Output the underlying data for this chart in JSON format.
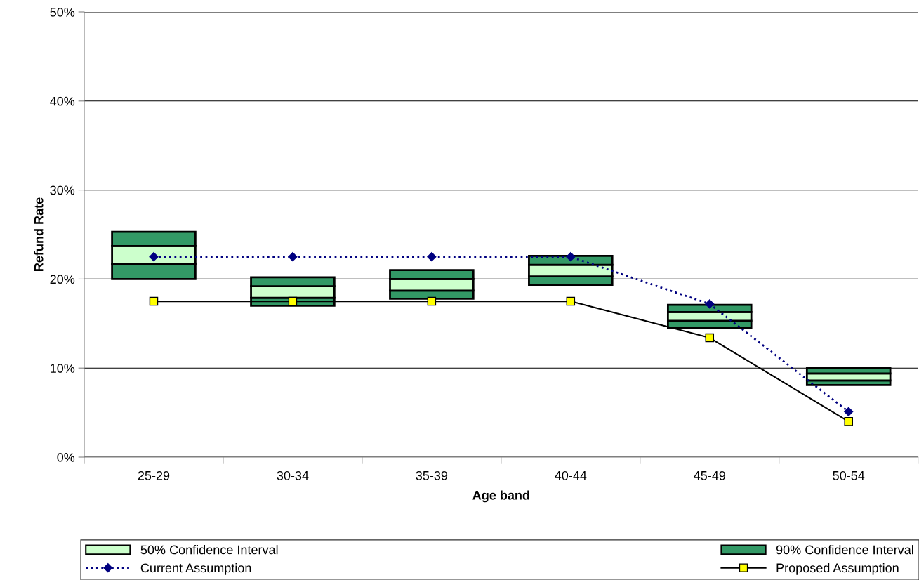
{
  "chart_data": {
    "type": "bar",
    "xlabel": "Age band",
    "ylabel": "Refund Rate",
    "categories": [
      "25-29",
      "30-34",
      "35-39",
      "40-44",
      "45-49",
      "50-54"
    ],
    "series": [
      {
        "color": "#339966",
        "base": [
          20.0,
          17.0,
          17.8,
          19.3,
          14.5,
          8.1
        ],
        "values": [
          1.7,
          0.9,
          0.9,
          1.0,
          0.8,
          0.5
        ]
      },
      {
        "name": "50% Confidence Interval",
        "color": "#ccffcc",
        "base": [
          21.7,
          17.9,
          18.7,
          20.3,
          15.3,
          8.6
        ],
        "values": [
          2.0,
          1.3,
          1.3,
          1.3,
          1.0,
          0.8
        ]
      },
      {
        "name": "90% Confidence Interval",
        "color": "#339966",
        "base": [
          23.7,
          19.2,
          20.0,
          21.6,
          16.3,
          9.4
        ],
        "values": [
          1.6,
          1.0,
          1.0,
          1.0,
          0.8,
          0.6
        ]
      },
      {
        "name": "Current Assumption",
        "type": "line",
        "color": "#000080",
        "marker": "diamond",
        "line_style": "dotted",
        "values": [
          22.5,
          22.5,
          22.5,
          22.5,
          17.2,
          5.1
        ]
      },
      {
        "name": "Proposed Assumption",
        "type": "line",
        "color": "#000000",
        "marker": "square",
        "line_style": "solid",
        "values": [
          17.5,
          17.5,
          17.5,
          17.5,
          13.4,
          4.0
        ]
      }
    ],
    "ylim": [
      0,
      50
    ],
    "yticks": [
      {
        "value": 0,
        "label": "0%"
      },
      {
        "value": 10,
        "label": "10%"
      },
      {
        "value": 20,
        "label": "20%"
      },
      {
        "value": 30,
        "label": "30%"
      },
      {
        "value": 40,
        "label": "40%"
      },
      {
        "value": 50,
        "label": "50%"
      }
    ],
    "grid": "y",
    "legend": "bottom"
  }
}
